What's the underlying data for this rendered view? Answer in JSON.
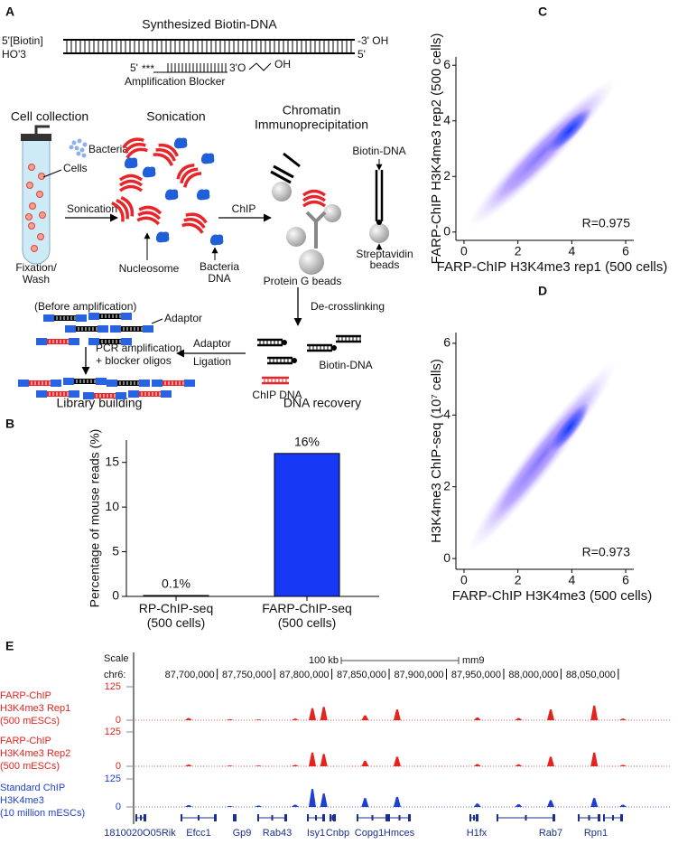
{
  "panels": [
    "A",
    "B",
    "C",
    "D",
    "E"
  ],
  "diagram": {
    "labels": [
      "Synthesized Biotin-DNA",
      "5'[Biotin]",
      "HO'3",
      "-3' OH",
      "5'",
      "5'",
      "***",
      "3'O",
      "OH",
      "Amplification Blocker",
      "Cell collection",
      "Sonication",
      "Chromatin",
      "Immunoprecipitation",
      "Bacteria",
      "Cells",
      "Sonication",
      "Fixation/",
      "Wash",
      "Nucleosome",
      "Bacteria",
      "DNA",
      "ChIP",
      "Biotin-DNA",
      "Streptavidin",
      "beads",
      "Protein G beads",
      "De-crosslinking",
      "(Before amplification)",
      "Adaptor",
      "PCR amplification",
      "+ blocker oligos",
      "Adaptor",
      "Ligation",
      "Biotin-DNA",
      "ChIP DNA",
      "Library building",
      "DNA recovery"
    ]
  },
  "chart_data": [
    {
      "type": "bar",
      "ylabel": "Percentage of mouse reads (%)",
      "categories": [
        "RP-ChIP-seq\n(500 cells)",
        "FARP-ChIP-seq\n(500 cells)"
      ],
      "values": [
        0.1,
        16
      ],
      "value_labels": [
        "0.1%",
        "16%"
      ],
      "color": "#1738f5",
      "ylim": [
        0,
        17.5
      ],
      "yticks": [
        0,
        5,
        10,
        15
      ]
    },
    {
      "type": "density",
      "xlabel": "FARP-ChIP H3K4me3 rep1 (500 cells)",
      "ylabel": "FARP-ChIP H3K4me3 rep2 (500 cells)",
      "annotation": "R=0.975",
      "xlim": [
        -0.3,
        6.3
      ],
      "ylim": [
        -0.3,
        6.3
      ],
      "xticks": [
        0,
        2,
        4,
        6
      ],
      "yticks": [
        0,
        2,
        4,
        6
      ]
    },
    {
      "type": "density",
      "xlabel": "FARP-ChIP H3K4me3 (500 cells)",
      "ylabel": "H3K4me3 ChIP-seq (10⁷ cells)",
      "annotation": "R=0.973",
      "xlim": [
        -0.3,
        6.3
      ],
      "ylim": [
        -0.3,
        6.3
      ],
      "xticks": [
        0,
        2,
        4,
        6
      ],
      "yticks": [
        0,
        2,
        4,
        6
      ]
    },
    {
      "type": "tracks",
      "scale_label": "Scale",
      "chrom": "chr6:",
      "scale_bar": "100 kb",
      "genome": "mm9",
      "xlim": [
        87627000,
        88095000
      ],
      "xticks": [
        {
          "value": 87700000,
          "label": "87,700,000"
        },
        {
          "value": 87750000,
          "label": "87,750,000"
        },
        {
          "value": 87800000,
          "label": "87,800,000"
        },
        {
          "value": 87850000,
          "label": "87,850,000"
        },
        {
          "value": 87900000,
          "label": "87,900,000"
        },
        {
          "value": 87950000,
          "label": "87,950,000"
        },
        {
          "value": 88000000,
          "label": "88,000,000"
        },
        {
          "value": 88050000,
          "label": "88,050,000"
        }
      ],
      "ylim": [
        0,
        125
      ],
      "yticks": [
        0,
        125
      ],
      "positions": [
        87675000,
        87711000,
        87736000,
        87768000,
        87783000,
        87793000,
        87829000,
        87857000,
        87927000,
        87963000,
        87991000,
        88029000,
        88054000
      ],
      "series": [
        {
          "name": "FARP-ChIP\nH3K4me3 Rep1\n(500 mESCs)",
          "color": "#e3241f",
          "values": [
            8,
            4,
            3,
            6,
            45,
            50,
            18,
            40,
            10,
            8,
            40,
            55,
            6
          ]
        },
        {
          "name": "FARP-ChIP\nH3K4me3 Rep2\n(500 mESCs)",
          "color": "#e3241f",
          "values": [
            6,
            3,
            3,
            5,
            50,
            45,
            20,
            35,
            8,
            7,
            35,
            50,
            5
          ]
        },
        {
          "name": "Standard ChIP\nH3K4me3\n(10 million mESCs)",
          "color": "#1f3fd0",
          "values": [
            8,
            4,
            6,
            10,
            80,
            60,
            40,
            45,
            15,
            12,
            30,
            40,
            10
          ]
        }
      ],
      "genes": [
        "1810020O05Rik",
        "Efcc1",
        "Gp9",
        "Rab43",
        "Isy1",
        "Cnbp",
        "Copg1",
        "Hmces",
        "H1fx",
        "Rab7",
        "Rpn1"
      ]
    }
  ]
}
